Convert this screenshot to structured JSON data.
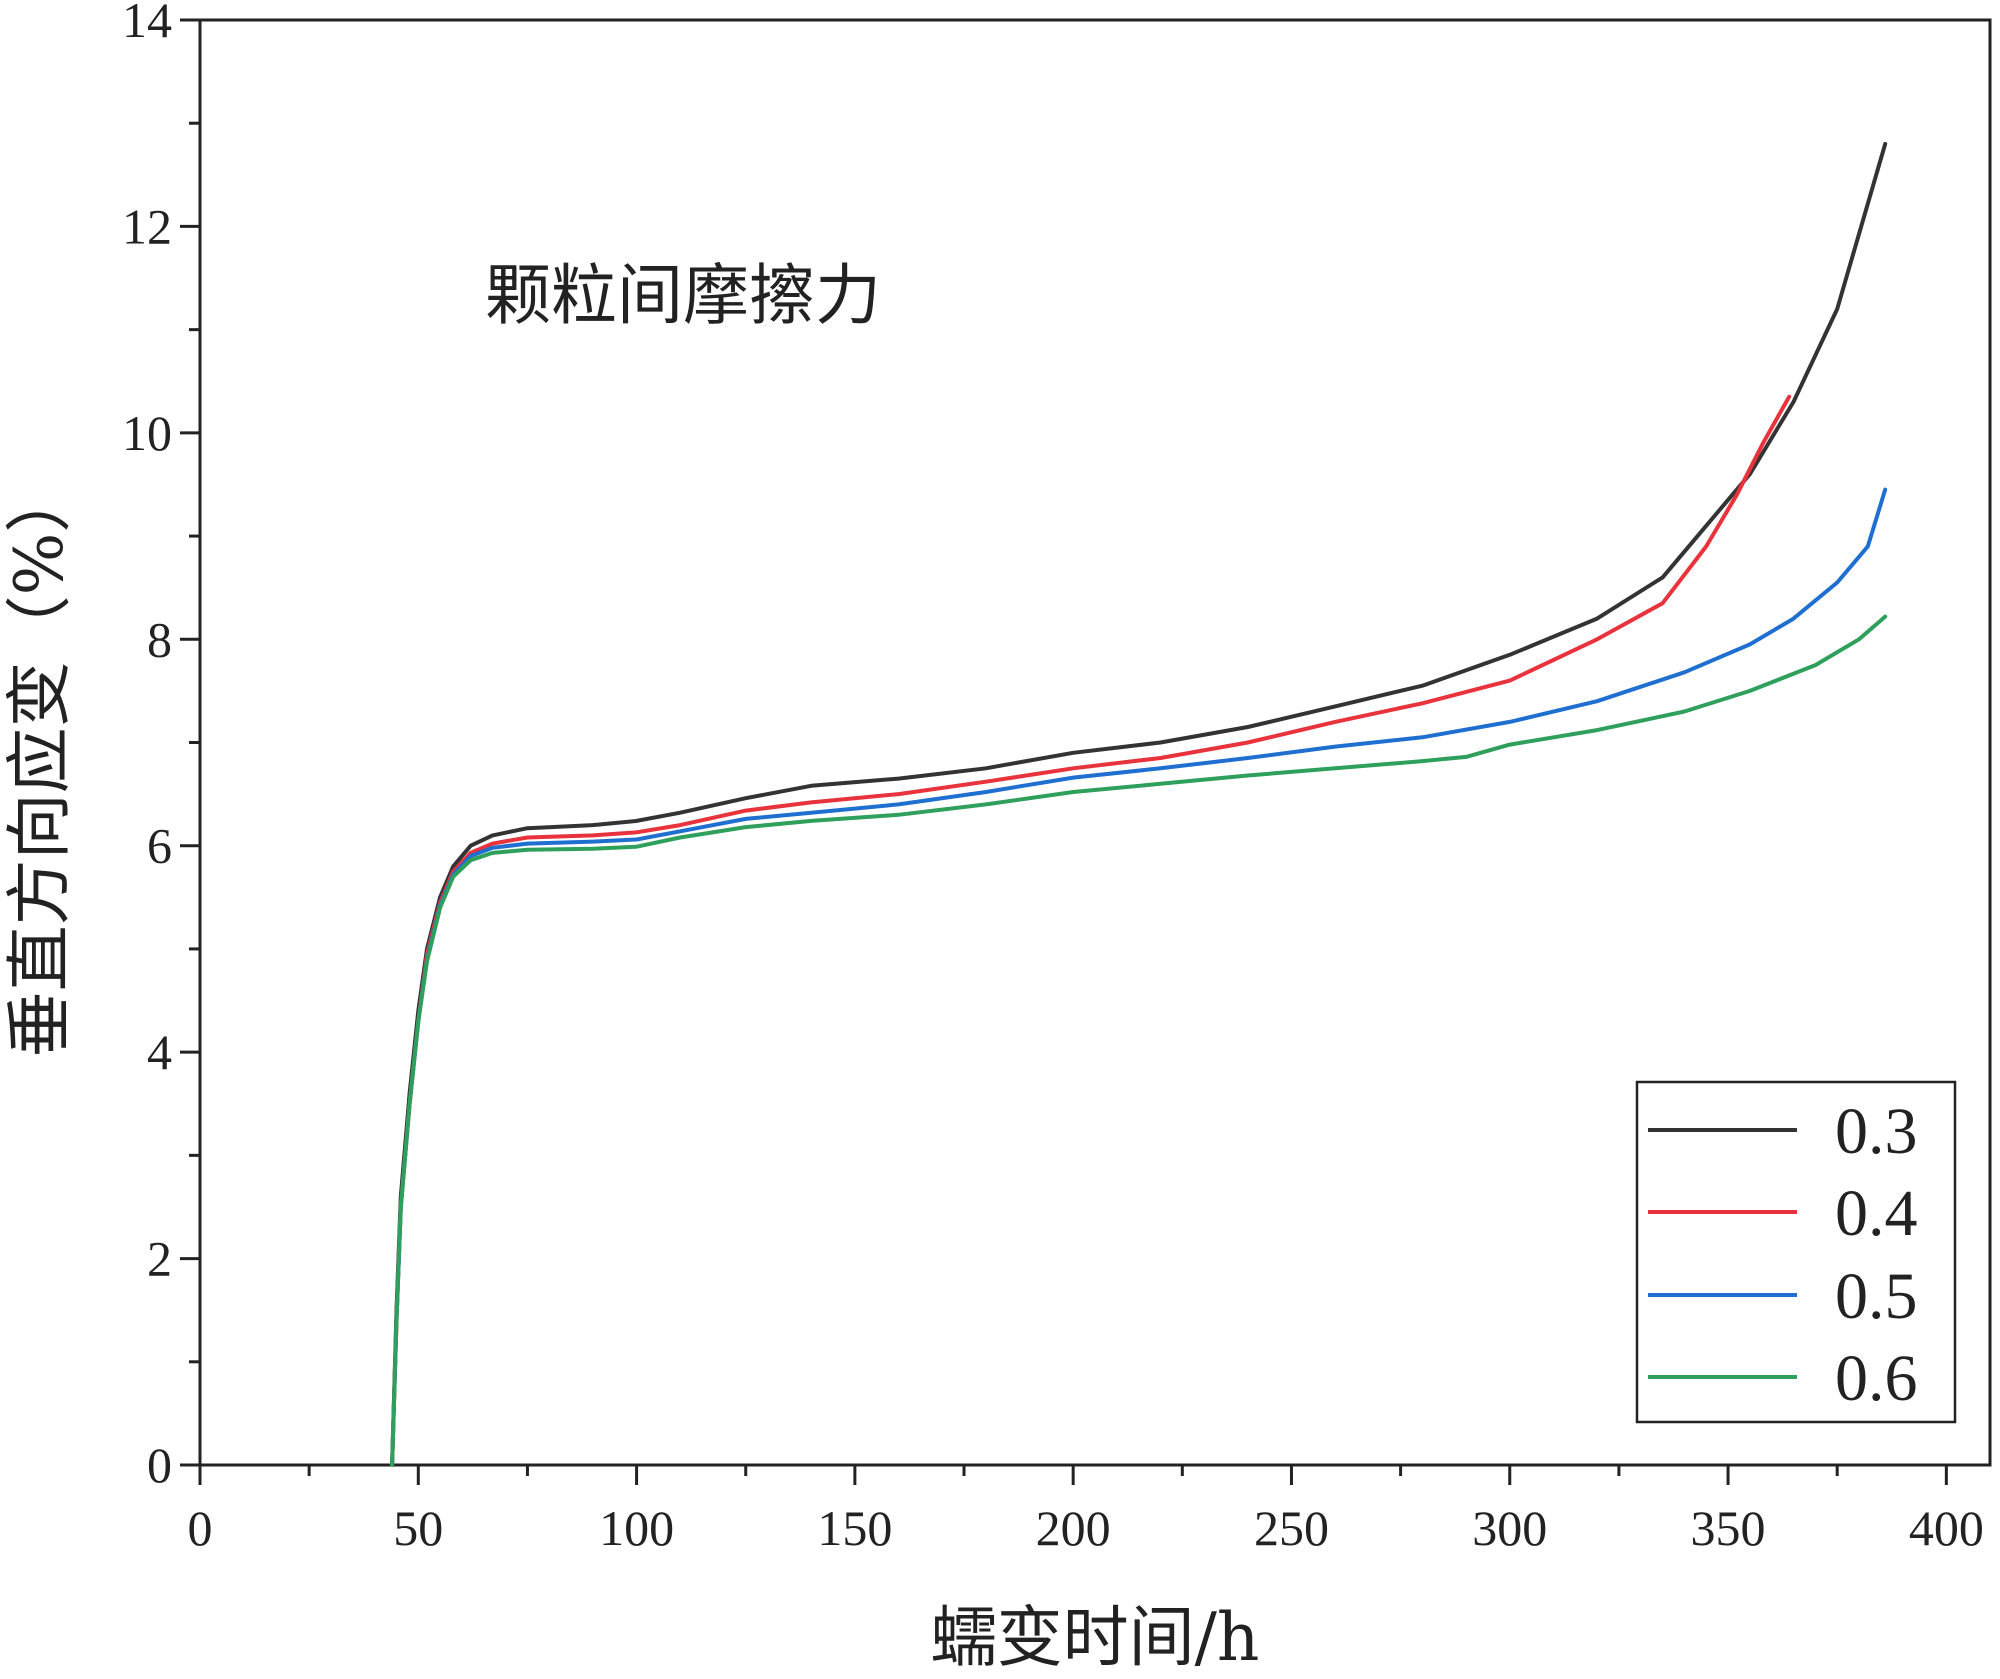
{
  "chart_data": {
    "type": "line",
    "title": "",
    "annotation": "颗粒间摩擦力",
    "xlabel": "蠕变时间/h",
    "ylabel": "垂直方向应变（%）",
    "xlim": [
      0,
      410
    ],
    "ylim": [
      0,
      14
    ],
    "x_ticks": [
      0,
      50,
      100,
      150,
      200,
      250,
      300,
      350,
      400
    ],
    "y_ticks": [
      0,
      2,
      4,
      6,
      8,
      10,
      12,
      14
    ],
    "grid": false,
    "legend_position": "bottom-right",
    "series": [
      {
        "name": "0.3",
        "color": "#333333",
        "points": [
          [
            44,
            0
          ],
          [
            45,
            1.5
          ],
          [
            46,
            2.6
          ],
          [
            48,
            3.6
          ],
          [
            50,
            4.4
          ],
          [
            52,
            5.0
          ],
          [
            55,
            5.5
          ],
          [
            58,
            5.8
          ],
          [
            62,
            6.0
          ],
          [
            67,
            6.1
          ],
          [
            75,
            6.17
          ],
          [
            90,
            6.2
          ],
          [
            100,
            6.24
          ],
          [
            110,
            6.32
          ],
          [
            125,
            6.46
          ],
          [
            140,
            6.58
          ],
          [
            160,
            6.65
          ],
          [
            180,
            6.75
          ],
          [
            200,
            6.9
          ],
          [
            220,
            7.0
          ],
          [
            240,
            7.15
          ],
          [
            260,
            7.35
          ],
          [
            280,
            7.55
          ],
          [
            300,
            7.85
          ],
          [
            320,
            8.2
          ],
          [
            335,
            8.6
          ],
          [
            345,
            9.1
          ],
          [
            355,
            9.6
          ],
          [
            365,
            10.3
          ],
          [
            375,
            11.2
          ],
          [
            386,
            12.8
          ]
        ]
      },
      {
        "name": "0.4",
        "color": "#e8323c",
        "points": [
          [
            44,
            0
          ],
          [
            45,
            1.4
          ],
          [
            46,
            2.5
          ],
          [
            48,
            3.5
          ],
          [
            50,
            4.3
          ],
          [
            52,
            4.95
          ],
          [
            55,
            5.45
          ],
          [
            58,
            5.75
          ],
          [
            62,
            5.93
          ],
          [
            67,
            6.02
          ],
          [
            75,
            6.08
          ],
          [
            90,
            6.1
          ],
          [
            100,
            6.13
          ],
          [
            110,
            6.2
          ],
          [
            125,
            6.34
          ],
          [
            140,
            6.42
          ],
          [
            160,
            6.5
          ],
          [
            180,
            6.62
          ],
          [
            200,
            6.75
          ],
          [
            220,
            6.85
          ],
          [
            240,
            7.0
          ],
          [
            260,
            7.2
          ],
          [
            280,
            7.38
          ],
          [
            300,
            7.6
          ],
          [
            320,
            8.0
          ],
          [
            335,
            8.35
          ],
          [
            345,
            8.9
          ],
          [
            352,
            9.4
          ],
          [
            358,
            9.9
          ],
          [
            364,
            10.35
          ]
        ]
      },
      {
        "name": "0.5",
        "color": "#1f6fd1",
        "points": [
          [
            44,
            0
          ],
          [
            45,
            1.4
          ],
          [
            46,
            2.5
          ],
          [
            48,
            3.5
          ],
          [
            50,
            4.3
          ],
          [
            52,
            4.9
          ],
          [
            55,
            5.42
          ],
          [
            58,
            5.72
          ],
          [
            62,
            5.9
          ],
          [
            67,
            5.98
          ],
          [
            75,
            6.02
          ],
          [
            90,
            6.04
          ],
          [
            100,
            6.06
          ],
          [
            110,
            6.14
          ],
          [
            125,
            6.26
          ],
          [
            140,
            6.32
          ],
          [
            160,
            6.4
          ],
          [
            180,
            6.52
          ],
          [
            200,
            6.66
          ],
          [
            220,
            6.75
          ],
          [
            240,
            6.85
          ],
          [
            260,
            6.96
          ],
          [
            280,
            7.05
          ],
          [
            300,
            7.2
          ],
          [
            320,
            7.4
          ],
          [
            340,
            7.68
          ],
          [
            355,
            7.95
          ],
          [
            365,
            8.2
          ],
          [
            375,
            8.55
          ],
          [
            382,
            8.9
          ],
          [
            386,
            9.45
          ]
        ]
      },
      {
        "name": "0.6",
        "color": "#2fa05c",
        "points": [
          [
            44,
            0
          ],
          [
            45,
            1.4
          ],
          [
            46,
            2.5
          ],
          [
            48,
            3.5
          ],
          [
            50,
            4.3
          ],
          [
            52,
            4.88
          ],
          [
            55,
            5.4
          ],
          [
            58,
            5.7
          ],
          [
            62,
            5.86
          ],
          [
            67,
            5.93
          ],
          [
            75,
            5.96
          ],
          [
            90,
            5.97
          ],
          [
            100,
            5.99
          ],
          [
            110,
            6.08
          ],
          [
            125,
            6.18
          ],
          [
            140,
            6.24
          ],
          [
            160,
            6.3
          ],
          [
            180,
            6.4
          ],
          [
            200,
            6.52
          ],
          [
            220,
            6.6
          ],
          [
            240,
            6.68
          ],
          [
            260,
            6.75
          ],
          [
            280,
            6.82
          ],
          [
            290,
            6.86
          ],
          [
            300,
            6.98
          ],
          [
            320,
            7.12
          ],
          [
            340,
            7.3
          ],
          [
            355,
            7.5
          ],
          [
            370,
            7.75
          ],
          [
            380,
            8.0
          ],
          [
            386,
            8.22
          ]
        ]
      }
    ]
  }
}
